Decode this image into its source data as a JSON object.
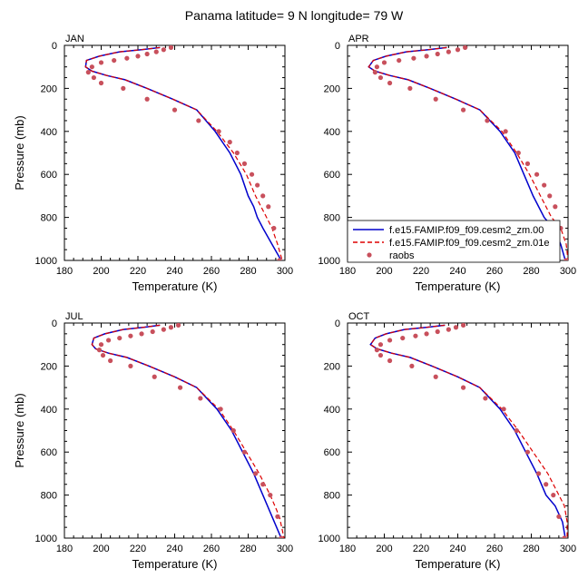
{
  "figure": {
    "title": "Panama  latitude= 9 N longitude= 79 W"
  },
  "chart_data": [
    {
      "type": "line",
      "panel": "JAN",
      "title": "JAN",
      "xlabel": "Temperature (K)",
      "ylabel": "Pressure (mb)",
      "xlim": [
        180,
        300
      ],
      "ylim": [
        1000,
        0
      ],
      "xticks": [
        180,
        200,
        220,
        240,
        260,
        280,
        300
      ],
      "yticks": [
        0,
        200,
        400,
        600,
        800,
        1000
      ],
      "series": [
        {
          "name": "f.e15.FAMIP.f09_f09.cesm2_zm.00",
          "color": "#0000cc",
          "style": "solid",
          "x": [
            232,
            222,
            210,
            199,
            192,
            191.5,
            195,
            203,
            213,
            225,
            239,
            252,
            262,
            270,
            276,
            280,
            283,
            285,
            288,
            293,
            298
          ],
          "y": [
            10,
            20,
            30,
            50,
            70,
            100,
            120,
            140,
            160,
            200,
            250,
            300,
            400,
            500,
            600,
            700,
            750,
            800,
            850,
            925,
            1000
          ]
        },
        {
          "name": "f.e15.FAMIP.f09_f09.cesm2_zm.01e",
          "color": "#dd0000",
          "style": "dashed",
          "x": [
            232,
            222,
            210,
            199,
            192,
            191.5,
            195,
            203,
            213,
            225,
            239,
            252,
            263,
            272,
            279,
            284,
            287,
            290,
            293,
            296,
            298.5
          ],
          "y": [
            10,
            20,
            30,
            50,
            70,
            100,
            120,
            140,
            160,
            200,
            250,
            300,
            400,
            500,
            600,
            700,
            750,
            800,
            850,
            925,
            1000
          ]
        },
        {
          "name": "raobs",
          "color": "#c8505c",
          "style": "markers",
          "x": [
            238,
            234,
            230,
            225,
            220,
            214,
            207,
            200,
            195,
            193,
            196,
            200,
            212,
            225,
            240,
            253,
            264,
            270,
            274,
            278,
            282,
            285,
            288,
            291,
            294,
            297
          ],
          "y": [
            10,
            20,
            30,
            40,
            50,
            60,
            70,
            80,
            100,
            125,
            150,
            175,
            200,
            250,
            300,
            350,
            400,
            450,
            500,
            550,
            600,
            650,
            700,
            750,
            850,
            1000
          ]
        }
      ]
    },
    {
      "type": "line",
      "panel": "APR",
      "title": "APR",
      "xlabel": "Temperature (K)",
      "ylabel": "",
      "xlim": [
        180,
        300
      ],
      "ylim": [
        1000,
        0
      ],
      "xticks": [
        180,
        200,
        220,
        240,
        260,
        280,
        300
      ],
      "yticks": [
        0,
        200,
        400,
        600,
        800,
        1000
      ],
      "series": [
        {
          "name": "f.e15.FAMIP.f09_f09.cesm2_zm.00",
          "color": "#0000cc",
          "style": "solid",
          "x": [
            234,
            224,
            212,
            201,
            194,
            191.5,
            195,
            203,
            213,
            225,
            239,
            252,
            263,
            271,
            276,
            281,
            287,
            292,
            296,
            298.5
          ],
          "y": [
            10,
            20,
            30,
            50,
            70,
            100,
            120,
            140,
            160,
            200,
            250,
            300,
            400,
            500,
            600,
            700,
            800,
            850,
            925,
            1000
          ]
        },
        {
          "name": "f.e15.FAMIP.f09_f09.cesm2_zm.01e",
          "color": "#dd0000",
          "style": "dashed",
          "x": [
            234,
            224,
            212,
            201,
            194,
            191.5,
            195,
            203,
            213,
            225,
            239,
            252,
            264,
            272,
            279,
            285,
            291,
            296,
            299,
            300
          ],
          "y": [
            10,
            20,
            30,
            50,
            70,
            100,
            120,
            140,
            160,
            200,
            250,
            300,
            400,
            500,
            600,
            700,
            800,
            850,
            925,
            1000
          ]
        },
        {
          "name": "raobs",
          "color": "#c8505c",
          "style": "markers",
          "x": [
            244,
            240,
            235,
            229,
            223,
            216,
            208,
            200,
            196,
            195,
            198,
            203,
            214,
            228,
            243,
            256,
            266,
            273,
            278,
            283,
            287,
            290,
            293,
            296,
            299
          ],
          "y": [
            10,
            20,
            30,
            40,
            50,
            60,
            70,
            80,
            100,
            125,
            150,
            175,
            200,
            250,
            300,
            350,
            400,
            500,
            550,
            600,
            650,
            700,
            750,
            850,
            1000
          ]
        }
      ]
    },
    {
      "type": "line",
      "panel": "JUL",
      "title": "JUL",
      "xlabel": "Temperature (K)",
      "ylabel": "Pressure (mb)",
      "xlim": [
        180,
        300
      ],
      "ylim": [
        1000,
        0
      ],
      "xticks": [
        180,
        200,
        220,
        240,
        260,
        280,
        300
      ],
      "yticks": [
        0,
        200,
        400,
        600,
        800,
        1000
      ],
      "series": [
        {
          "name": "f.e15.FAMIP.f09_f09.cesm2_zm.00",
          "color": "#0000cc",
          "style": "solid",
          "x": [
            232,
            223,
            212,
            202,
            196,
            195,
            197,
            204,
            214,
            226,
            240,
            252,
            263,
            271,
            277,
            283,
            288,
            293,
            298
          ],
          "y": [
            10,
            20,
            30,
            50,
            70,
            100,
            120,
            140,
            160,
            200,
            250,
            300,
            400,
            500,
            600,
            700,
            800,
            900,
            1000
          ]
        },
        {
          "name": "f.e15.FAMIP.f09_f09.cesm2_zm.01e",
          "color": "#dd0000",
          "style": "dashed",
          "x": [
            232,
            223,
            212,
            202,
            196,
            195,
            197,
            204,
            214,
            226,
            240,
            252,
            264,
            272,
            279,
            286,
            292,
            297,
            299.5
          ],
          "y": [
            10,
            20,
            30,
            50,
            70,
            100,
            120,
            140,
            160,
            200,
            250,
            300,
            400,
            500,
            600,
            700,
            800,
            900,
            1000
          ]
        },
        {
          "name": "raobs",
          "color": "#c8505c",
          "style": "markers",
          "x": [
            242,
            238,
            234,
            228,
            222,
            216,
            210,
            204,
            200,
            199,
            201,
            205,
            216,
            229,
            243,
            254,
            265,
            272,
            278,
            284,
            288,
            292,
            296,
            298
          ],
          "y": [
            10,
            20,
            30,
            40,
            50,
            60,
            70,
            80,
            100,
            125,
            150,
            175,
            200,
            250,
            300,
            350,
            400,
            500,
            600,
            700,
            750,
            800,
            900,
            1000
          ]
        }
      ]
    },
    {
      "type": "line",
      "panel": "OCT",
      "title": "OCT",
      "xlabel": "Temperature (K)",
      "ylabel": "",
      "xlim": [
        180,
        300
      ],
      "ylim": [
        1000,
        0
      ],
      "xticks": [
        180,
        200,
        220,
        240,
        260,
        280,
        300
      ],
      "yticks": [
        0,
        200,
        400,
        600,
        800,
        1000
      ],
      "series": [
        {
          "name": "f.e15.FAMIP.f09_f09.cesm2_zm.00",
          "color": "#0000cc",
          "style": "solid",
          "x": [
            233,
            223,
            211,
            201,
            195,
            192.5,
            196,
            204,
            214,
            226,
            240,
            252,
            263,
            271,
            277,
            283,
            288,
            293,
            297,
            298.5
          ],
          "y": [
            10,
            20,
            30,
            50,
            70,
            100,
            120,
            140,
            160,
            200,
            250,
            300,
            400,
            500,
            600,
            700,
            800,
            850,
            925,
            1000
          ]
        },
        {
          "name": "f.e15.FAMIP.f09_f09.cesm2_zm.01e",
          "color": "#dd0000",
          "style": "dashed",
          "x": [
            233,
            223,
            211,
            201,
            195,
            192.5,
            196,
            204,
            214,
            226,
            240,
            252,
            264,
            273,
            281,
            289,
            295,
            298,
            299.5,
            299.5
          ],
          "y": [
            10,
            20,
            30,
            50,
            70,
            100,
            120,
            140,
            160,
            200,
            250,
            300,
            400,
            500,
            600,
            700,
            800,
            850,
            925,
            1000
          ]
        },
        {
          "name": "raobs",
          "color": "#c8505c",
          "style": "markers",
          "x": [
            243,
            239,
            235,
            229,
            223,
            217,
            210,
            203,
            198,
            196,
            198,
            203,
            215,
            228,
            243,
            255,
            265,
            272,
            278,
            284,
            288,
            292,
            295,
            298
          ],
          "y": [
            10,
            20,
            30,
            40,
            50,
            60,
            70,
            80,
            100,
            125,
            150,
            175,
            200,
            250,
            300,
            350,
            400,
            500,
            600,
            700,
            750,
            800,
            900,
            1000
          ]
        }
      ]
    }
  ],
  "legend": {
    "placement": "in APR panel, lower-right",
    "items": [
      {
        "label": "f.e15.FAMIP.f09_f09.cesm2_zm.00",
        "color": "#0000cc",
        "style": "solid"
      },
      {
        "label": "f.e15.FAMIP.f09_f09.cesm2_zm.01e",
        "color": "#dd0000",
        "style": "dashed"
      },
      {
        "label": "raobs",
        "color": "#c8505c",
        "style": "markers"
      }
    ]
  }
}
